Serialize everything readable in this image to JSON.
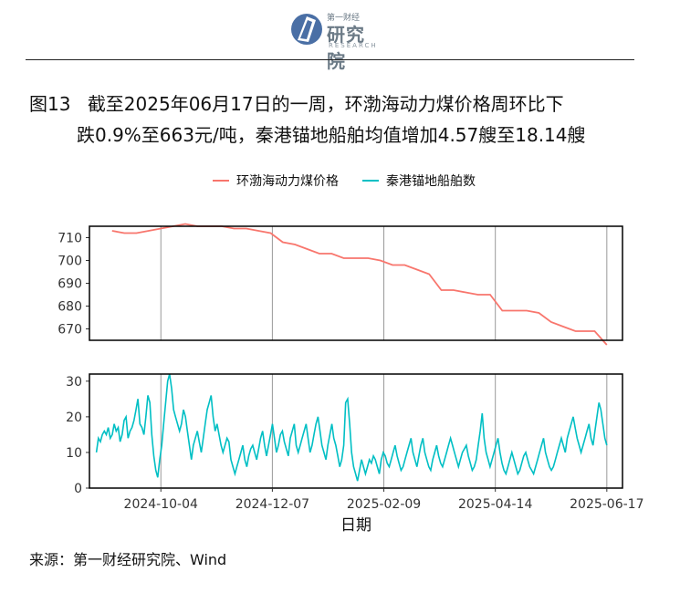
{
  "header": {
    "logo_top": "第一财经",
    "logo_main": "研究院",
    "logo_sub": "RESEARCH"
  },
  "figure": {
    "label": "图13",
    "title_line1": "截至2025年06月17日的一周，环渤海动力煤价格周环比下",
    "title_line2": "跌0.9%至663元/吨，秦港锚地船舶均值增加4.57艘至18.14艘"
  },
  "source": "来源：第一财经研究院、Wind",
  "colors": {
    "price": "#F8766D",
    "ships": "#00BFC4",
    "axis": "#000000",
    "grid": "#999999"
  },
  "chart_data": [
    {
      "type": "line",
      "name": "环渤海动力煤价格",
      "ylim": [
        665,
        715
      ],
      "yticks": [
        670,
        680,
        690,
        700,
        710
      ],
      "x": [
        "2024-09-06",
        "2024-09-13",
        "2024-09-20",
        "2024-09-27",
        "2024-10-04",
        "2024-10-11",
        "2024-10-18",
        "2024-10-25",
        "2024-11-01",
        "2024-11-08",
        "2024-11-15",
        "2024-11-22",
        "2024-11-29",
        "2024-12-06",
        "2024-12-13",
        "2024-12-20",
        "2024-12-27",
        "2025-01-03",
        "2025-01-10",
        "2025-01-17",
        "2025-01-24",
        "2025-01-31",
        "2025-02-07",
        "2025-02-14",
        "2025-02-21",
        "2025-02-28",
        "2025-03-07",
        "2025-03-14",
        "2025-03-21",
        "2025-03-28",
        "2025-04-04",
        "2025-04-11",
        "2025-04-18",
        "2025-04-25",
        "2025-05-02",
        "2025-05-09",
        "2025-05-16",
        "2025-05-23",
        "2025-05-30",
        "2025-06-06",
        "2025-06-10",
        "2025-06-17"
      ],
      "values": [
        713,
        712,
        712,
        713,
        714,
        715,
        716,
        715,
        715,
        715,
        714,
        714,
        713,
        712,
        708,
        707,
        705,
        703,
        703,
        701,
        701,
        701,
        700,
        698,
        698,
        696,
        694,
        687,
        687,
        686,
        685,
        685,
        678,
        678,
        678,
        677,
        673,
        671,
        669,
        669,
        669,
        663
      ]
    },
    {
      "type": "line",
      "name": "秦港锚地船舶数",
      "ylim": [
        0,
        32
      ],
      "yticks": [
        0,
        10,
        20,
        30
      ],
      "x_start": "2024-08-28",
      "x_end": "2025-06-17",
      "values": [
        10,
        14,
        13,
        15,
        16,
        15,
        17,
        14,
        15,
        18,
        16,
        17,
        13,
        15,
        19,
        20,
        14,
        16,
        17,
        19,
        22,
        25,
        18,
        17,
        15,
        20,
        26,
        24,
        15,
        9,
        5,
        3,
        8,
        12,
        18,
        24,
        30,
        32,
        28,
        22,
        20,
        18,
        16,
        18,
        22,
        20,
        16,
        12,
        8,
        12,
        14,
        16,
        13,
        10,
        14,
        18,
        22,
        24,
        26,
        20,
        16,
        18,
        15,
        12,
        10,
        12,
        14,
        13,
        8,
        6,
        4,
        6,
        8,
        10,
        12,
        8,
        6,
        9,
        11,
        12,
        10,
        8,
        11,
        14,
        16,
        12,
        9,
        12,
        15,
        18,
        14,
        10,
        12,
        15,
        16,
        13,
        11,
        9,
        14,
        16,
        18,
        12,
        10,
        12,
        14,
        16,
        18,
        14,
        10,
        12,
        15,
        18,
        20,
        16,
        12,
        10,
        8,
        12,
        15,
        18,
        14,
        12,
        9,
        6,
        8,
        12,
        24,
        25,
        18,
        10,
        6,
        4,
        2,
        5,
        8,
        6,
        4,
        6,
        8,
        7,
        9,
        8,
        6,
        4,
        8,
        10,
        9,
        7,
        6,
        8,
        10,
        12,
        9,
        7,
        5,
        6,
        8,
        10,
        12,
        14,
        10,
        8,
        6,
        9,
        12,
        14,
        10,
        8,
        6,
        5,
        8,
        10,
        12,
        9,
        7,
        6,
        8,
        10,
        12,
        14,
        12,
        10,
        8,
        6,
        8,
        10,
        11,
        12,
        9,
        7,
        5,
        6,
        8,
        12,
        16,
        21,
        14,
        10,
        8,
        6,
        8,
        10,
        12,
        14,
        10,
        7,
        5,
        4,
        6,
        8,
        10,
        8,
        6,
        4,
        5,
        7,
        9,
        10,
        8,
        6,
        5,
        4,
        6,
        8,
        10,
        12,
        14,
        10,
        8,
        6,
        5,
        6,
        8,
        10,
        12,
        14,
        12,
        10,
        14,
        16,
        18,
        20,
        17,
        14,
        12,
        10,
        12,
        14,
        16,
        18,
        14,
        12,
        16,
        20,
        24,
        22,
        18,
        14,
        12
      ]
    }
  ],
  "axes": {
    "xtick_labels": [
      "2024-10-04",
      "2024-12-07",
      "2025-02-09",
      "2025-04-14",
      "2025-06-17"
    ],
    "xlabel": "日期"
  },
  "legend": {
    "items": [
      {
        "label": "环渤海动力煤价格",
        "color": "#F8766D"
      },
      {
        "label": "秦港锚地船舶数",
        "color": "#00BFC4"
      }
    ],
    "position": "top"
  }
}
